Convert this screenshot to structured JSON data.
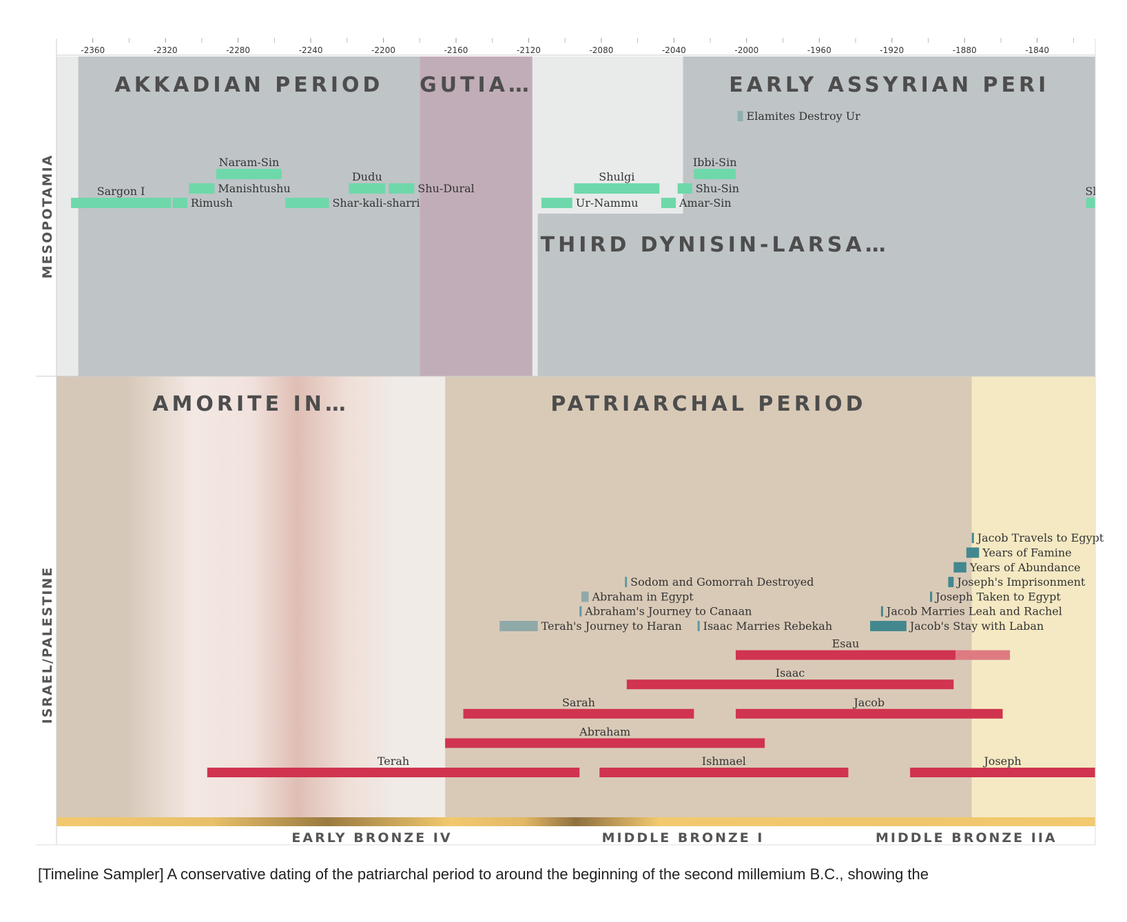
{
  "chart_data": {
    "type": "timeline",
    "x_range": [
      -2380,
      -1808
    ],
    "x_ticks": [
      -2360,
      -2320,
      -2280,
      -2240,
      -2200,
      -2160,
      -2120,
      -2080,
      -2040,
      -2000,
      -1960,
      -1920,
      -1880,
      -1840
    ],
    "regions": [
      "MESOPOTAMIA",
      "ISRAEL/PALESTINE"
    ],
    "mesopotamia_periods": [
      {
        "label": "AKKADIAN PERIOD",
        "start": -2368,
        "end": -2180,
        "row": "top",
        "color": "#bfc4c7"
      },
      {
        "label": "GUTIA…",
        "start": -2180,
        "end": -2118,
        "row": "top",
        "color": "#c1adb8"
      },
      {
        "label": "EARLY ASSYRIAN PERI",
        "start": -2035,
        "end": -1808,
        "row": "top",
        "color": "#bfc4c7"
      },
      {
        "label": "THIRD DYNAS…",
        "start": -2115,
        "end": -2028,
        "row": "bottom",
        "color": "#bfc4c7"
      },
      {
        "label": "ISIN-LARSA…",
        "start": -2028,
        "end": -1920,
        "row": "bottom",
        "color": "#bfc4c7"
      },
      {
        "label": "…",
        "start": -1912,
        "end": -1808,
        "row": "bottom",
        "color": "#bfc4c7"
      }
    ],
    "mesopotamia_events": [
      {
        "label": "Sargon I",
        "start": -2372,
        "end": -2317,
        "level": 0,
        "text": "above",
        "color": "#6ed8aa"
      },
      {
        "label": "Rimush",
        "start": -2316,
        "end": -2308,
        "level": 0,
        "text": "right",
        "color": "#6ed8aa"
      },
      {
        "label": "Manishtushu",
        "start": -2307,
        "end": -2293,
        "level": 1,
        "text": "right",
        "color": "#6ed8aa"
      },
      {
        "label": "Naram-Sin",
        "start": -2292,
        "end": -2256,
        "level": 2,
        "text": "above",
        "color": "#6ed8aa"
      },
      {
        "label": "Shar-kali-sharri",
        "start": -2254,
        "end": -2230,
        "level": 0,
        "text": "right",
        "color": "#6ed8aa"
      },
      {
        "label": "Dudu",
        "start": -2219,
        "end": -2199,
        "level": 1,
        "text": "above",
        "color": "#6ed8aa"
      },
      {
        "label": "Shu-Dural",
        "start": -2197,
        "end": -2183,
        "level": 1,
        "text": "right",
        "color": "#6ed8aa"
      },
      {
        "label": "Ur-Nammu",
        "start": -2113,
        "end": -2096,
        "level": 0,
        "text": "right",
        "color": "#6ed8aa"
      },
      {
        "label": "Shulgi",
        "start": -2095,
        "end": -2048,
        "level": 1,
        "text": "above",
        "color": "#6ed8aa"
      },
      {
        "label": "Amar-Sin",
        "start": -2047,
        "end": -2039,
        "level": 0,
        "text": "right",
        "color": "#6ed8aa"
      },
      {
        "label": "Shu-Sin",
        "start": -2038,
        "end": -2030,
        "level": 1,
        "text": "right",
        "color": "#6ed8aa"
      },
      {
        "label": "Ibbi-Sin",
        "start": -2029,
        "end": -2006,
        "level": 2,
        "text": "above",
        "color": "#6ed8aa"
      },
      {
        "label": "Elamites Destroy Ur",
        "start": -2005,
        "end": -2002,
        "level": 6,
        "text": "right",
        "color": "#8fb0ae"
      },
      {
        "label": "Sl",
        "start": -1813,
        "end": -1808,
        "level": 0,
        "text": "above",
        "color": "#6ed8aa"
      }
    ],
    "israel_periods": [
      {
        "label": "AMORITE IN…",
        "start": -2380,
        "end": -2166,
        "color": "#f0e8e4"
      },
      {
        "label": "PATRIARCHAL PERIOD",
        "start": -2166,
        "end": -1876,
        "color": "#d9cab7"
      },
      {
        "label": "",
        "start": -1876,
        "end": -1808,
        "color": "#f5e9c3"
      }
    ],
    "israel_events": [
      {
        "label": "Terah's Journey to Haran",
        "start": -2136,
        "end": -2115,
        "level": 0,
        "color": "#8fa9a8"
      },
      {
        "label": "Abraham's Journey to Canaan",
        "start": -2092,
        "end": -2091,
        "level": 1,
        "color": "#5d9aa3"
      },
      {
        "label": "Abraham in Egypt",
        "start": -2091,
        "end": -2087,
        "level": 2,
        "color": "#8fa9a8"
      },
      {
        "label": "Sodom and Gomorrah Destroyed",
        "start": -2067,
        "end": -2066,
        "level": 3,
        "color": "#5d9aa3"
      },
      {
        "label": "Isaac Marries Rebekah",
        "start": -2027,
        "end": -2026,
        "level": 0,
        "color": "#5d9aa3"
      },
      {
        "label": "Jacob's Stay with Laban",
        "start": -1932,
        "end": -1912,
        "level": 0,
        "color": "#43888f"
      },
      {
        "label": "Jacob Marries Leah and Rachel",
        "start": -1926,
        "end": -1925,
        "level": 1,
        "color": "#43888f"
      },
      {
        "label": "Joseph Taken to Egypt",
        "start": -1899,
        "end": -1898,
        "level": 2,
        "color": "#43888f"
      },
      {
        "label": "Joseph's Imprisonment",
        "start": -1889,
        "end": -1886,
        "level": 3,
        "color": "#43888f"
      },
      {
        "label": "Years of Abundance",
        "start": -1886,
        "end": -1879,
        "level": 4,
        "color": "#43888f"
      },
      {
        "label": "Years of Famine",
        "start": -1879,
        "end": -1872,
        "level": 5,
        "color": "#43888f"
      },
      {
        "label": "Jacob Travels to Egypt",
        "start": -1876,
        "end": -1875,
        "level": 6,
        "color": "#43888f"
      }
    ],
    "israel_lifespans": [
      {
        "label": "Terah",
        "start": -2297,
        "end": -2092,
        "row": 0
      },
      {
        "label": "Ishmael",
        "start": -2081,
        "end": -1944,
        "row": 0
      },
      {
        "label": "Joseph",
        "start": -1910,
        "end": -1808,
        "row": 0
      },
      {
        "label": "Abraham",
        "start": -2166,
        "end": -1990,
        "row": 1
      },
      {
        "label": "Sarah",
        "start": -2156,
        "end": -2029,
        "row": 2
      },
      {
        "label": "Jacob",
        "start": -2006,
        "end": -1859,
        "row": 2
      },
      {
        "label": "Isaac",
        "start": -2066,
        "end": -1886,
        "row": 3
      },
      {
        "label": "Esau",
        "start": -2006,
        "end": -1885,
        "row": 4,
        "extension_end": -1855
      }
    ],
    "lifespan_color": "#d0344f",
    "lifespan_extension_color": "#df7a82",
    "archaeological_periods": [
      {
        "label": "EARLY BRONZE IV",
        "start": -2380,
        "end": -2120
      },
      {
        "label": "MIDDLE BRONZE I",
        "start": -2120,
        "end": -1950
      },
      {
        "label": "MIDDLE BRONZE IIA",
        "start": -1950,
        "end": -1808
      }
    ]
  },
  "caption": "[Timeline Sampler] A conservative dating of the patriarchal period to around the beginning of the second millemium B.C., showing the"
}
